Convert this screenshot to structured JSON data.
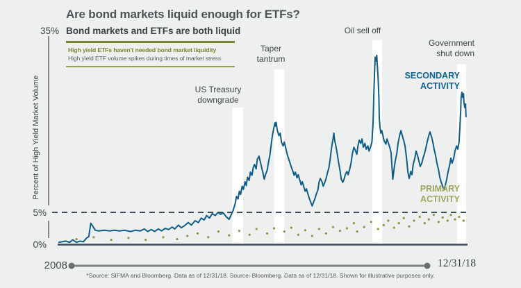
{
  "page": {
    "background": "#eef0f0"
  },
  "header": {
    "title": "Are bond markets liquid enough for ETFs?",
    "subtitle": "Bond markets and ETFs are both liquid"
  },
  "callout": {
    "line1": "High yield ETFs haven't needed bond market liquidity",
    "line2": "High yield ETF volume spikes during times of market stress"
  },
  "axes": {
    "y_label": "Percent of High Yield Market Volume",
    "tick_top": "35%",
    "tick_mid": "5%",
    "tick_bottom": "0%",
    "x_start": "2008",
    "x_end": "12/31/18"
  },
  "series_labels": {
    "secondary": "SECONDARY\nACTIVITY",
    "primary": "PRIMARY\nACTIVITY"
  },
  "footer": {
    "text": "*Source: SIFMA and Bloomberg. Data as of 12/31/18. Source: Bloomberg. Data as of 12/31/18. Shown for illustrative purposes only."
  },
  "colors": {
    "background": "#eef0f0",
    "secondary_line": "#0f5d87",
    "secondary_label": "#0f6292",
    "primary_dots": "#8f943e",
    "primary_label": "#a2a55e",
    "olive_accent": "#7d8232",
    "dashed_reference": "#3e4c58",
    "zero_axis": "#3a4754",
    "y_axis": "#8b8b85",
    "timeline": "#7f8487",
    "event_band": "#ffffff",
    "title_text": "#4e5356"
  },
  "chart_data": {
    "type": "line",
    "title": "Bond markets and ETFs are both liquid",
    "xlabel": "",
    "ylabel": "Percent of High Yield Market Volume",
    "ylim": [
      0,
      35
    ],
    "y_ticks_pct": [
      0,
      5,
      35
    ],
    "reference_line_pct": 5,
    "x_range_labels": [
      "2008",
      "12/31/18"
    ],
    "x_unit": "percent of distance along time axis from 2008 to 12/31/18",
    "legend_position": "annotated-in-plot",
    "grid": false,
    "event_bands": [
      {
        "label": "US Treasury\ndowngrade",
        "t_start": 42.7,
        "t_end": 45.3,
        "top_pct": 21.4
      },
      {
        "label": "Taper\ntantrum",
        "t_start": 52.9,
        "t_end": 55.4,
        "top_pct": 27.4
      },
      {
        "label": "Oil sell off",
        "t_start": 76.9,
        "t_end": 79.3,
        "top_pct": 32.0
      },
      {
        "label": "Government\nshut down",
        "t_start": 97.6,
        "t_end": 99.8,
        "top_pct": 28.2
      }
    ],
    "series": [
      {
        "name": "Secondary activity",
        "style": "line",
        "color": "#0f5d87",
        "points": [
          [
            0.3,
            0.3
          ],
          [
            2.0,
            0.5
          ],
          [
            2.9,
            0.3
          ],
          [
            3.7,
            0.7
          ],
          [
            4.6,
            0.3
          ],
          [
            5.4,
            0.5
          ],
          [
            6.3,
            0.4
          ],
          [
            7.1,
            1.0
          ],
          [
            7.6,
            1.2
          ],
          [
            8.1,
            3.3
          ],
          [
            8.6,
            2.8
          ],
          [
            9.2,
            2.2
          ],
          [
            10.0,
            2.1
          ],
          [
            11.4,
            2.2
          ],
          [
            12.7,
            2.1
          ],
          [
            13.9,
            2.2
          ],
          [
            15.1,
            2.1
          ],
          [
            16.4,
            2.2
          ],
          [
            17.8,
            2.0
          ],
          [
            19.0,
            2.2
          ],
          [
            20.2,
            2.1
          ],
          [
            21.2,
            2.4
          ],
          [
            22.0,
            2.0
          ],
          [
            22.9,
            2.3
          ],
          [
            23.7,
            2.0
          ],
          [
            24.6,
            2.4
          ],
          [
            25.4,
            2.1
          ],
          [
            26.3,
            2.5
          ],
          [
            27.1,
            2.3
          ],
          [
            28.0,
            2.7
          ],
          [
            28.6,
            2.4
          ],
          [
            29.5,
            3.0
          ],
          [
            30.2,
            2.6
          ],
          [
            31.0,
            2.9
          ],
          [
            31.9,
            3.4
          ],
          [
            32.7,
            3.0
          ],
          [
            33.6,
            3.7
          ],
          [
            34.4,
            3.4
          ],
          [
            35.1,
            4.1
          ],
          [
            35.8,
            3.8
          ],
          [
            36.4,
            4.5
          ],
          [
            37.1,
            4.1
          ],
          [
            37.8,
            4.8
          ],
          [
            38.5,
            4.5
          ],
          [
            39.2,
            5.0
          ],
          [
            39.8,
            4.7
          ],
          [
            40.5,
            4.9
          ],
          [
            41.2,
            4.3
          ],
          [
            41.9,
            3.9
          ],
          [
            42.4,
            4.6
          ],
          [
            42.9,
            5.3
          ],
          [
            43.4,
            6.4
          ],
          [
            43.7,
            7.5
          ],
          [
            44.1,
            7.1
          ],
          [
            44.4,
            8.3
          ],
          [
            44.7,
            7.8
          ],
          [
            45.1,
            9.1
          ],
          [
            45.4,
            8.6
          ],
          [
            45.8,
            9.8
          ],
          [
            46.1,
            9.2
          ],
          [
            46.4,
            10.5
          ],
          [
            46.8,
            10.0
          ],
          [
            47.1,
            11.3
          ],
          [
            47.5,
            10.8
          ],
          [
            47.8,
            12.0
          ],
          [
            48.1,
            12.5
          ],
          [
            48.5,
            11.8
          ],
          [
            48.8,
            13.3
          ],
          [
            49.2,
            13.8
          ],
          [
            49.5,
            13.0
          ],
          [
            49.8,
            12.2
          ],
          [
            50.2,
            11.1
          ],
          [
            50.5,
            10.2
          ],
          [
            50.8,
            10.9
          ],
          [
            51.2,
            11.6
          ],
          [
            51.5,
            12.7
          ],
          [
            51.9,
            14.1
          ],
          [
            52.2,
            15.7
          ],
          [
            52.5,
            17.1
          ],
          [
            52.9,
            18.4
          ],
          [
            53.1,
            19.0
          ],
          [
            53.2,
            18.5
          ],
          [
            53.4,
            19.1
          ],
          [
            53.6,
            18.2
          ],
          [
            53.7,
            17.8
          ],
          [
            54.1,
            17.0
          ],
          [
            54.4,
            17.4
          ],
          [
            54.7,
            16.0
          ],
          [
            55.1,
            15.4
          ],
          [
            55.4,
            16.0
          ],
          [
            55.8,
            14.9
          ],
          [
            56.1,
            14.1
          ],
          [
            56.4,
            13.5
          ],
          [
            56.8,
            12.7
          ],
          [
            57.1,
            12.1
          ],
          [
            57.5,
            11.4
          ],
          [
            57.8,
            10.8
          ],
          [
            58.1,
            11.3
          ],
          [
            58.5,
            10.4
          ],
          [
            58.8,
            10.9
          ],
          [
            59.2,
            10.0
          ],
          [
            59.5,
            9.3
          ],
          [
            59.8,
            9.8
          ],
          [
            60.2,
            8.9
          ],
          [
            60.5,
            8.3
          ],
          [
            60.8,
            8.7
          ],
          [
            61.2,
            7.8
          ],
          [
            61.5,
            7.2
          ],
          [
            61.9,
            6.5
          ],
          [
            62.2,
            6.0
          ],
          [
            62.5,
            6.5
          ],
          [
            62.9,
            7.2
          ],
          [
            63.2,
            7.8
          ],
          [
            63.6,
            8.5
          ],
          [
            63.9,
            9.8
          ],
          [
            64.2,
            10.3
          ],
          [
            64.6,
            9.8
          ],
          [
            64.9,
            9.1
          ],
          [
            65.3,
            9.7
          ],
          [
            65.6,
            10.3
          ],
          [
            65.9,
            11.1
          ],
          [
            66.3,
            12.0
          ],
          [
            66.6,
            13.3
          ],
          [
            66.9,
            14.9
          ],
          [
            67.3,
            16.5
          ],
          [
            67.5,
            17.4
          ],
          [
            67.6,
            16.7
          ],
          [
            67.8,
            16.0
          ],
          [
            68.0,
            15.4
          ],
          [
            68.3,
            14.3
          ],
          [
            68.6,
            13.0
          ],
          [
            69.0,
            11.6
          ],
          [
            69.3,
            10.2
          ],
          [
            69.7,
            9.7
          ],
          [
            70.0,
            10.2
          ],
          [
            70.3,
            10.9
          ],
          [
            70.7,
            11.4
          ],
          [
            71.0,
            10.9
          ],
          [
            71.4,
            11.8
          ],
          [
            71.7,
            12.7
          ],
          [
            72.0,
            14.1
          ],
          [
            72.4,
            15.2
          ],
          [
            72.7,
            14.8
          ],
          [
            73.1,
            14.1
          ],
          [
            73.4,
            15.4
          ],
          [
            73.7,
            16.3
          ],
          [
            74.1,
            15.8
          ],
          [
            74.4,
            16.5
          ],
          [
            74.7,
            15.2
          ],
          [
            75.1,
            15.8
          ],
          [
            75.4,
            14.9
          ],
          [
            75.8,
            15.4
          ],
          [
            76.1,
            14.6
          ],
          [
            76.4,
            15.1
          ],
          [
            76.8,
            16.0
          ],
          [
            77.1,
            19.2
          ],
          [
            77.3,
            24.1
          ],
          [
            77.5,
            27.9
          ],
          [
            77.6,
            29.3
          ],
          [
            77.8,
            28.7
          ],
          [
            78.0,
            29.6
          ],
          [
            78.1,
            28.3
          ],
          [
            78.3,
            26.3
          ],
          [
            78.5,
            23.0
          ],
          [
            78.6,
            19.8
          ],
          [
            78.8,
            18.2
          ],
          [
            79.0,
            17.4
          ],
          [
            79.2,
            17.8
          ],
          [
            79.5,
            17.0
          ],
          [
            79.8,
            16.2
          ],
          [
            80.2,
            15.7
          ],
          [
            80.5,
            16.5
          ],
          [
            80.8,
            15.9
          ],
          [
            81.2,
            15.1
          ],
          [
            81.5,
            14.3
          ],
          [
            81.9,
            10.2
          ],
          [
            82.2,
            11.7
          ],
          [
            82.5,
            13.0
          ],
          [
            82.9,
            14.3
          ],
          [
            83.2,
            15.8
          ],
          [
            83.6,
            17.1
          ],
          [
            83.9,
            17.8
          ],
          [
            84.2,
            17.1
          ],
          [
            84.6,
            16.2
          ],
          [
            84.9,
            15.4
          ],
          [
            85.3,
            13.3
          ],
          [
            85.6,
            11.3
          ],
          [
            85.9,
            10.3
          ],
          [
            86.3,
            11.4
          ],
          [
            86.6,
            10.9
          ],
          [
            86.9,
            12.5
          ],
          [
            87.3,
            13.5
          ],
          [
            87.6,
            14.6
          ],
          [
            88.0,
            13.8
          ],
          [
            88.3,
            13.0
          ],
          [
            88.6,
            12.2
          ],
          [
            89.0,
            12.7
          ],
          [
            89.3,
            13.5
          ],
          [
            89.7,
            14.3
          ],
          [
            90.0,
            15.1
          ],
          [
            90.3,
            16.0
          ],
          [
            90.7,
            17.0
          ],
          [
            91.0,
            17.6
          ],
          [
            91.4,
            16.8
          ],
          [
            91.7,
            16.0
          ],
          [
            92.0,
            14.9
          ],
          [
            92.4,
            13.8
          ],
          [
            92.7,
            12.7
          ],
          [
            93.1,
            11.6
          ],
          [
            93.4,
            10.5
          ],
          [
            93.7,
            9.8
          ],
          [
            94.1,
            9.1
          ],
          [
            94.4,
            8.5
          ],
          [
            94.7,
            9.1
          ],
          [
            95.1,
            10.2
          ],
          [
            95.4,
            11.3
          ],
          [
            95.8,
            12.4
          ],
          [
            96.1,
            13.5
          ],
          [
            96.4,
            12.7
          ],
          [
            96.8,
            13.5
          ],
          [
            97.1,
            14.6
          ],
          [
            97.5,
            15.4
          ],
          [
            97.8,
            14.9
          ],
          [
            98.1,
            16.0
          ],
          [
            98.3,
            18.2
          ],
          [
            98.5,
            20.9
          ],
          [
            98.6,
            23.0
          ],
          [
            98.8,
            23.8
          ],
          [
            99.0,
            23.0
          ],
          [
            99.2,
            23.6
          ],
          [
            99.3,
            22.2
          ],
          [
            99.5,
            21.4
          ],
          [
            99.7,
            22.0
          ],
          [
            99.8,
            20.0
          ]
        ]
      },
      {
        "name": "Primary activity",
        "style": "dots",
        "color": "#8f943e",
        "points": [
          [
            4.6,
            0.8
          ],
          [
            8.8,
            1.1
          ],
          [
            13.1,
            0.7
          ],
          [
            17.3,
            1.0
          ],
          [
            21.5,
            0.7
          ],
          [
            25.8,
            1.1
          ],
          [
            29.2,
            0.8
          ],
          [
            31.7,
            1.3
          ],
          [
            34.2,
            1.7
          ],
          [
            36.8,
            1.1
          ],
          [
            39.3,
            2.0
          ],
          [
            41.9,
            1.4
          ],
          [
            44.4,
            2.1
          ],
          [
            46.9,
            1.5
          ],
          [
            48.6,
            2.4
          ],
          [
            51.2,
            1.7
          ],
          [
            52.9,
            2.5
          ],
          [
            55.4,
            2.0
          ],
          [
            57.1,
            2.6
          ],
          [
            58.8,
            1.5
          ],
          [
            60.5,
            2.2
          ],
          [
            62.2,
            1.3
          ],
          [
            63.9,
            2.4
          ],
          [
            65.6,
            1.7
          ],
          [
            67.3,
            2.7
          ],
          [
            69.0,
            2.1
          ],
          [
            70.7,
            2.5
          ],
          [
            72.4,
            3.3
          ],
          [
            73.2,
            2.0
          ],
          [
            74.9,
            2.7
          ],
          [
            76.6,
            3.5
          ],
          [
            78.3,
            2.4
          ],
          [
            79.7,
            3.0
          ],
          [
            80.8,
            3.7
          ],
          [
            82.2,
            2.6
          ],
          [
            83.4,
            3.3
          ],
          [
            84.6,
            4.1
          ],
          [
            85.9,
            2.8
          ],
          [
            87.1,
            3.7
          ],
          [
            88.5,
            4.3
          ],
          [
            89.7,
            3.3
          ],
          [
            90.7,
            3.9
          ],
          [
            91.9,
            4.6
          ],
          [
            93.1,
            3.5
          ],
          [
            94.1,
            4.2
          ],
          [
            95.3,
            3.7
          ],
          [
            96.1,
            4.6
          ],
          [
            97.1,
            3.9
          ],
          [
            98.1,
            4.3
          ],
          [
            99.2,
            3.7
          ]
        ]
      }
    ]
  }
}
